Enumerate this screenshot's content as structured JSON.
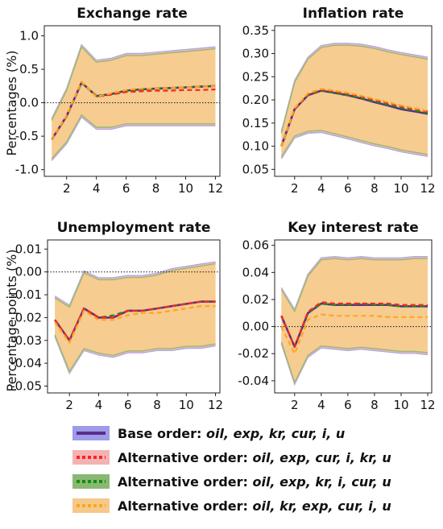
{
  "figure": {
    "y_labels": [
      "Percentages (%)",
      "Percentage points  (%)"
    ]
  },
  "legend": {
    "items": [
      {
        "prefix": "Base order:",
        "suffix": "oil, exp, kr, cur, i, u",
        "line_color": "#5b2d8e",
        "band_color": "#9e9be8",
        "style": "solid"
      },
      {
        "prefix": "Alternative order:",
        "suffix": "oil, exp, cur, i, kr, u",
        "line_color": "#ff2222",
        "band_color": "#f4b3b3",
        "style": "dotted"
      },
      {
        "prefix": "Alternative order:",
        "suffix": "oil, exp, kr, i, cur, u",
        "line_color": "#138f13",
        "band_color": "#8ab872",
        "style": "dotted"
      },
      {
        "prefix": "Alternative order:",
        "suffix": "oil, kr, exp, cur, i, u",
        "line_color": "#ffa51f",
        "band_color": "#f5c98a",
        "style": "dotted"
      }
    ]
  },
  "chart_data": [
    {
      "type": "line",
      "title": "Exchange rate",
      "xlabel": "",
      "ylabel": "Percentages (%)",
      "x": [
        1,
        2,
        3,
        4,
        5,
        6,
        7,
        8,
        9,
        10,
        11,
        12
      ],
      "xticks": [
        2,
        4,
        6,
        8,
        10,
        12
      ],
      "xlim": [
        0.5,
        12.3
      ],
      "yticks": [
        1.0,
        0.5,
        0.0,
        -0.5,
        -1.0
      ],
      "ytick_labels": [
        "1.0",
        "0.5",
        "0.0",
        "-0.5",
        "-1.0"
      ],
      "ylim": [
        -1.1,
        1.15
      ],
      "zero_line": true,
      "band_upper": [
        -0.25,
        0.2,
        0.85,
        0.62,
        0.65,
        0.72,
        0.72,
        0.74,
        0.76,
        0.78,
        0.8,
        0.82
      ],
      "band_lower": [
        -0.85,
        -0.6,
        -0.2,
        -0.38,
        -0.38,
        -0.33,
        -0.33,
        -0.33,
        -0.33,
        -0.33,
        -0.33,
        -0.33
      ],
      "series": [
        {
          "name": "Base order",
          "values": [
            -0.55,
            -0.2,
            0.3,
            0.1,
            0.13,
            0.18,
            0.2,
            0.21,
            0.22,
            0.23,
            0.24,
            0.25
          ]
        },
        {
          "name": "Alternative order (oil, exp, cur, i, kr, u)",
          "values": [
            -0.55,
            -0.2,
            0.31,
            0.09,
            0.12,
            0.16,
            0.17,
            0.18,
            0.18,
            0.19,
            0.19,
            0.2
          ]
        },
        {
          "name": "Alternative order (oil, exp, kr, i, cur, u)",
          "values": [
            -0.55,
            -0.2,
            0.3,
            0.1,
            0.13,
            0.18,
            0.2,
            0.21,
            0.22,
            0.23,
            0.24,
            0.25
          ]
        },
        {
          "name": "Alternative order (oil, kr, exp, cur, i, u)",
          "values": [
            -0.55,
            -0.19,
            0.31,
            0.09,
            0.14,
            0.19,
            0.21,
            0.21,
            0.22,
            0.23,
            0.24,
            0.25
          ]
        }
      ]
    },
    {
      "type": "line",
      "title": "Inflation rate",
      "xlabel": "",
      "ylabel": "",
      "x": [
        1,
        2,
        3,
        4,
        5,
        6,
        7,
        8,
        9,
        10,
        11,
        12
      ],
      "xticks": [
        2,
        4,
        6,
        8,
        10,
        12
      ],
      "xlim": [
        0.5,
        12.3
      ],
      "yticks": [
        0.35,
        0.3,
        0.25,
        0.2,
        0.15,
        0.1,
        0.05
      ],
      "ytick_labels": [
        "0.35",
        "0.30",
        "0.25",
        "0.20",
        "0.15",
        "0.10",
        "0.05"
      ],
      "ylim": [
        0.035,
        0.36
      ],
      "zero_line": false,
      "band_upper": [
        0.13,
        0.24,
        0.29,
        0.315,
        0.32,
        0.32,
        0.318,
        0.313,
        0.306,
        0.3,
        0.295,
        0.29
      ],
      "band_lower": [
        0.075,
        0.12,
        0.13,
        0.132,
        0.125,
        0.118,
        0.11,
        0.103,
        0.097,
        0.09,
        0.085,
        0.08
      ],
      "series": [
        {
          "name": "Base order",
          "values": [
            0.1,
            0.18,
            0.21,
            0.22,
            0.215,
            0.21,
            0.203,
            0.195,
            0.188,
            0.18,
            0.175,
            0.17
          ]
        },
        {
          "name": "Alternative order (oil, exp, cur, i, kr, u)",
          "values": [
            0.1,
            0.18,
            0.212,
            0.222,
            0.218,
            0.213,
            0.207,
            0.2,
            0.193,
            0.186,
            0.18,
            0.175
          ]
        },
        {
          "name": "Alternative order (oil, exp, kr, i, cur, u)",
          "values": [
            0.1,
            0.18,
            0.21,
            0.22,
            0.215,
            0.21,
            0.204,
            0.197,
            0.19,
            0.183,
            0.177,
            0.172
          ]
        },
        {
          "name": "Alternative order (oil, kr, exp, cur, i, u)",
          "values": [
            0.1,
            0.182,
            0.214,
            0.224,
            0.22,
            0.215,
            0.209,
            0.202,
            0.195,
            0.188,
            0.182,
            0.176
          ]
        }
      ]
    },
    {
      "type": "line",
      "title": "Unemployment rate",
      "xlabel": "",
      "ylabel": "Percentage points  (%)",
      "x": [
        1,
        2,
        3,
        4,
        5,
        6,
        7,
        8,
        9,
        10,
        11,
        12
      ],
      "xticks": [
        2,
        4,
        6,
        8,
        10,
        12
      ],
      "xlim": [
        0.5,
        12.3
      ],
      "yticks": [
        0.01,
        0.0,
        -0.01,
        -0.02,
        -0.03,
        -0.04,
        -0.05
      ],
      "ytick_labels": [
        "0.01",
        "0.00",
        "-0.01",
        "-0.02",
        "-0.03",
        "-0.04",
        "-0.05"
      ],
      "ylim": [
        -0.053,
        0.014
      ],
      "zero_line": true,
      "band_upper": [
        -0.011,
        -0.015,
        0.0,
        -0.003,
        -0.003,
        -0.002,
        -0.002,
        -0.001,
        0.001,
        0.002,
        0.003,
        0.004
      ],
      "band_lower": [
        -0.028,
        -0.044,
        -0.034,
        -0.036,
        -0.037,
        -0.035,
        -0.035,
        -0.034,
        -0.034,
        -0.033,
        -0.033,
        -0.032
      ],
      "series": [
        {
          "name": "Base order",
          "values": [
            -0.021,
            -0.03,
            -0.016,
            -0.02,
            -0.02,
            -0.017,
            -0.017,
            -0.016,
            -0.015,
            -0.014,
            -0.013,
            -0.013
          ]
        },
        {
          "name": "Alternative order (oil, exp, cur, i, kr, u)",
          "values": [
            -0.021,
            -0.03,
            -0.016,
            -0.02,
            -0.02,
            -0.017,
            -0.017,
            -0.016,
            -0.015,
            -0.014,
            -0.013,
            -0.013
          ]
        },
        {
          "name": "Alternative order (oil, exp, kr, i, cur, u)",
          "values": [
            -0.021,
            -0.03,
            -0.016,
            -0.02,
            -0.019,
            -0.017,
            -0.017,
            -0.016,
            -0.015,
            -0.014,
            -0.013,
            -0.013
          ]
        },
        {
          "name": "Alternative order (oil, kr, exp, cur, i, u)",
          "values": [
            -0.022,
            -0.031,
            -0.017,
            -0.021,
            -0.021,
            -0.019,
            -0.018,
            -0.018,
            -0.017,
            -0.016,
            -0.015,
            -0.015
          ]
        }
      ]
    },
    {
      "type": "line",
      "title": "Key interest rate",
      "xlabel": "",
      "ylabel": "",
      "x": [
        1,
        2,
        3,
        4,
        5,
        6,
        7,
        8,
        9,
        10,
        11,
        12
      ],
      "xticks": [
        2,
        4,
        6,
        8,
        10,
        12
      ],
      "xlim": [
        0.5,
        12.3
      ],
      "yticks": [
        0.06,
        0.04,
        0.02,
        0.0,
        -0.02,
        -0.04
      ],
      "ytick_labels": [
        "0.06",
        "0.04",
        "0.02",
        "0.00",
        "-0.02",
        "-0.04"
      ],
      "ylim": [
        -0.049,
        0.064
      ],
      "zero_line": true,
      "band_upper": [
        0.028,
        0.012,
        0.038,
        0.05,
        0.051,
        0.05,
        0.051,
        0.05,
        0.05,
        0.05,
        0.051,
        0.051
      ],
      "band_lower": [
        -0.012,
        -0.042,
        -0.022,
        -0.015,
        -0.016,
        -0.017,
        -0.016,
        -0.017,
        -0.018,
        -0.019,
        -0.019,
        -0.02
      ],
      "series": [
        {
          "name": "Base order",
          "values": [
            0.008,
            -0.015,
            0.01,
            0.017,
            0.016,
            0.016,
            0.016,
            0.016,
            0.016,
            0.015,
            0.015,
            0.015
          ]
        },
        {
          "name": "Alternative order (oil, exp, cur, i, kr, u)",
          "values": [
            0.008,
            -0.015,
            0.011,
            0.018,
            0.017,
            0.017,
            0.017,
            0.017,
            0.017,
            0.016,
            0.016,
            0.016
          ]
        },
        {
          "name": "Alternative order (oil, exp, kr, i, cur, u)",
          "values": [
            0.008,
            -0.015,
            0.01,
            0.017,
            0.016,
            0.016,
            0.017,
            0.016,
            0.016,
            0.015,
            0.015,
            0.015
          ]
        },
        {
          "name": "Alternative order (oil, kr, exp, cur, i, u)",
          "values": [
            0.0,
            -0.02,
            0.005,
            0.009,
            0.008,
            0.008,
            0.008,
            0.008,
            0.007,
            0.007,
            0.007,
            0.007
          ]
        }
      ]
    }
  ]
}
